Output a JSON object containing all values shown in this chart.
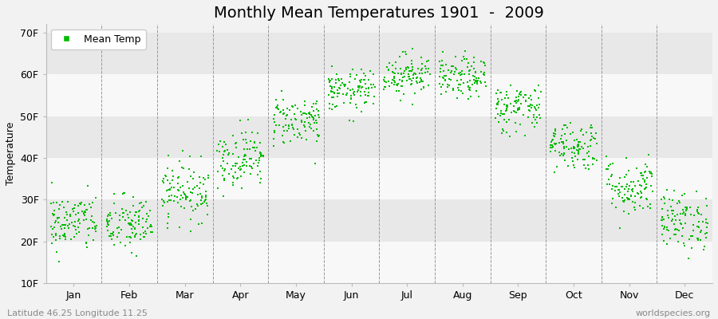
{
  "title": "Monthly Mean Temperatures 1901  -  2009",
  "ylabel": "Temperature",
  "xlabel": "",
  "subtitle_left": "Latitude 46.25 Longitude 11.25",
  "subtitle_right": "worldspecies.org",
  "months": [
    "Jan",
    "Feb",
    "Mar",
    "Apr",
    "May",
    "Jun",
    "Jul",
    "Aug",
    "Sep",
    "Oct",
    "Nov",
    "Dec"
  ],
  "yticks": [
    10,
    20,
    30,
    40,
    50,
    60,
    70
  ],
  "ytick_labels": [
    "10F",
    "20F",
    "30F",
    "40F",
    "50F",
    "60F",
    "70F"
  ],
  "ylim": [
    10,
    72
  ],
  "dot_color": "#00BB00",
  "dot_size": 3,
  "n_years": 109,
  "mean_temps_F": [
    24.5,
    24.0,
    32.0,
    40.0,
    49.0,
    56.0,
    60.0,
    59.0,
    52.0,
    43.0,
    33.0,
    25.0
  ],
  "std_temps_F": [
    3.5,
    3.5,
    3.5,
    3.5,
    3.0,
    2.5,
    2.5,
    2.5,
    3.0,
    3.0,
    3.5,
    3.5
  ],
  "bg_color": "#f2f2f2",
  "plot_bg_color": "#f2f2f2",
  "band_colors": [
    "#f8f8f8",
    "#e8e8e8"
  ],
  "legend_label": "Mean Temp",
  "title_fontsize": 14,
  "axis_fontsize": 9,
  "tick_fontsize": 9,
  "subtitle_fontsize": 8
}
